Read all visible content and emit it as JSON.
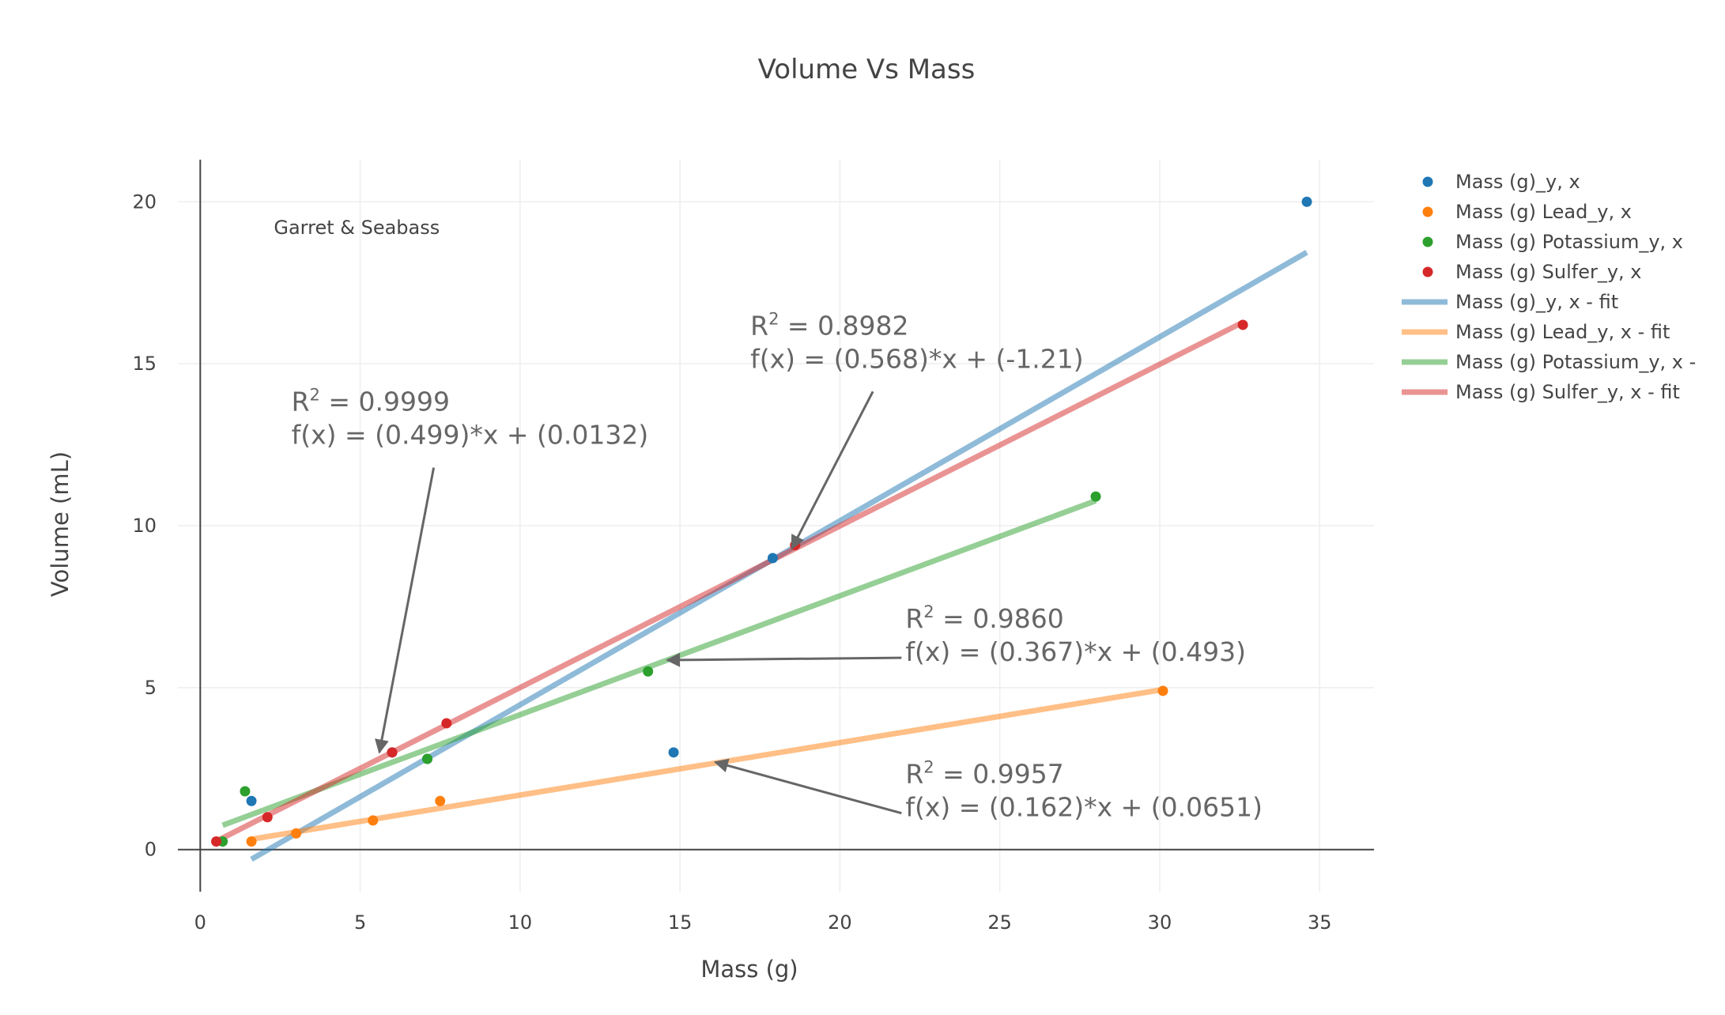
{
  "chart_data": {
    "type": "scatter",
    "title": "Volume Vs Mass",
    "xlabel": "Mass (g)",
    "ylabel": "Volume (mL)",
    "xlim": [
      -0.7,
      36.7
    ],
    "ylim": [
      -1.3,
      21.3
    ],
    "xticks": [
      0,
      5,
      10,
      15,
      20,
      25,
      30,
      35
    ],
    "yticks": [
      0,
      5,
      10,
      15,
      20
    ],
    "grid": true,
    "legend_position": "right",
    "note": "Garret & Seabass",
    "series": [
      {
        "name": "Mass (g)_y, x",
        "mode": "markers",
        "color": "#1f77b4",
        "x": [
          1.6,
          6.0,
          7.1,
          14.8,
          17.9,
          34.6
        ],
        "y": [
          1.5,
          3.0,
          2.8,
          3.0,
          9.0,
          20.0
        ]
      },
      {
        "name": "Mass (g) Lead_y, x",
        "mode": "markers",
        "color": "#ff7f0e",
        "x": [
          1.6,
          3.0,
          5.4,
          7.5,
          30.1
        ],
        "y": [
          0.25,
          0.5,
          0.9,
          1.5,
          4.9
        ]
      },
      {
        "name": "Mass (g) Potassium_y, x",
        "mode": "markers",
        "color": "#2ca02c",
        "x": [
          0.7,
          1.4,
          7.1,
          14.0,
          28.0
        ],
        "y": [
          0.25,
          1.8,
          2.8,
          5.5,
          10.9
        ]
      },
      {
        "name": "Mass (g) Sulfer_y, x",
        "mode": "markers",
        "color": "#d62728",
        "x": [
          0.5,
          2.1,
          6.0,
          7.7,
          18.6,
          32.6
        ],
        "y": [
          0.25,
          1.0,
          3.0,
          3.9,
          9.4,
          16.2
        ]
      },
      {
        "name": "Mass (g)_y, x - fit",
        "mode": "line",
        "color": "#1f77b4",
        "x": [
          1.6,
          34.6
        ],
        "y": [
          -0.3,
          18.44
        ]
      },
      {
        "name": "Mass (g) Lead_y, x - fit",
        "mode": "line",
        "color": "#ff7f0e",
        "x": [
          1.6,
          30.1
        ],
        "y": [
          0.32,
          4.94
        ]
      },
      {
        "name": "Mass (g) Potassium_y, x - ",
        "mode": "line",
        "color": "#2ca02c",
        "x": [
          0.7,
          28.0
        ],
        "y": [
          0.75,
          10.77
        ]
      },
      {
        "name": "Mass (g) Sulfer_y, x - fit",
        "mode": "line",
        "color": "#d62728",
        "x": [
          0.5,
          32.6
        ],
        "y": [
          0.26,
          16.28
        ]
      }
    ],
    "annotations": [
      {
        "r2_label": "R",
        "r2_exp": "2",
        "r2_value": " = 0.9999",
        "fx": "f(x) = (0.499)*x + (0.0132)",
        "text_at": [
          2.85,
          13.55
        ],
        "arrow_to": [
          5.6,
          3.0
        ]
      },
      {
        "r2_label": "R",
        "r2_exp": "2",
        "r2_value": " = 0.8982",
        "fx": "f(x) = (0.568)*x + (-1.21)",
        "text_at": [
          17.2,
          15.9
        ],
        "arrow_to": [
          18.5,
          9.3
        ]
      },
      {
        "r2_label": "R",
        "r2_exp": "2",
        "r2_value": " = 0.9860",
        "fx": "f(x) = (0.367)*x + (0.493)",
        "text_at": [
          22.05,
          6.85
        ],
        "arrow_to": [
          14.6,
          5.85
        ]
      },
      {
        "r2_label": "R",
        "r2_exp": "2",
        "r2_value": " = 0.9957",
        "fx": "f(x) = (0.162)*x + (0.0651)",
        "text_at": [
          22.05,
          2.05
        ],
        "arrow_to": [
          16.1,
          2.7
        ]
      }
    ]
  }
}
